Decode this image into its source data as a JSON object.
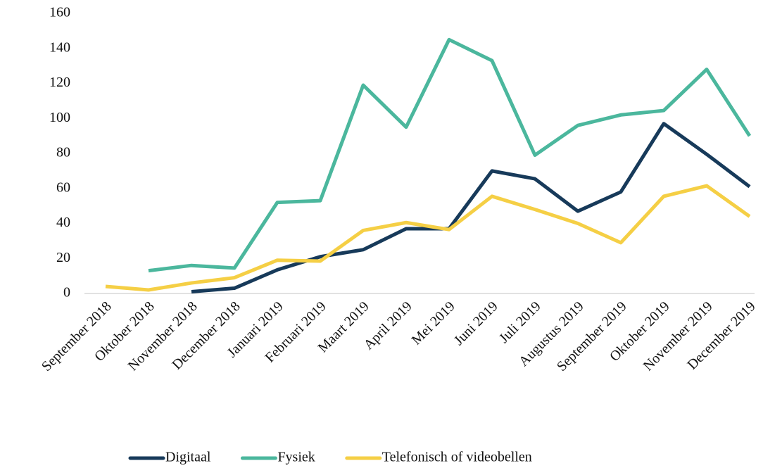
{
  "chart_data": {
    "type": "line",
    "categories": [
      "September 2018",
      "Oktober 2018",
      "November 2018",
      "December 2018",
      "Januari 2019",
      "Februari 2019",
      "Maart 2019",
      "April 2019",
      "Mei 2019",
      "Juni 2019",
      "Juli 2019",
      "Augustus 2019",
      "September 2019",
      "Oktober 2019",
      "November 2019",
      "December 2019"
    ],
    "series": [
      {
        "name": "Digitaal",
        "color": "#173a5a",
        "values": [
          null,
          null,
          1,
          3,
          13.5,
          21,
          25,
          37,
          37,
          70,
          65.5,
          47,
          58,
          97,
          79.5,
          61
        ]
      },
      {
        "name": "Fysiek",
        "color": "#4bb79d",
        "values": [
          null,
          13,
          16,
          14.5,
          52,
          53,
          119,
          95,
          145,
          133,
          79,
          96,
          102,
          104.5,
          128,
          90
        ]
      },
      {
        "name": "Telefonisch of videobellen",
        "color": "#f5cf45",
        "values": [
          4,
          2,
          6,
          9,
          19,
          18.5,
          36,
          40.5,
          36.5,
          55.5,
          48,
          40,
          29,
          55.5,
          61.5,
          44
        ]
      }
    ],
    "ylim": [
      0,
      160
    ],
    "yticks": [
      0,
      20,
      40,
      60,
      80,
      100,
      120,
      140,
      160
    ],
    "grid": false,
    "legend": "bottom"
  }
}
